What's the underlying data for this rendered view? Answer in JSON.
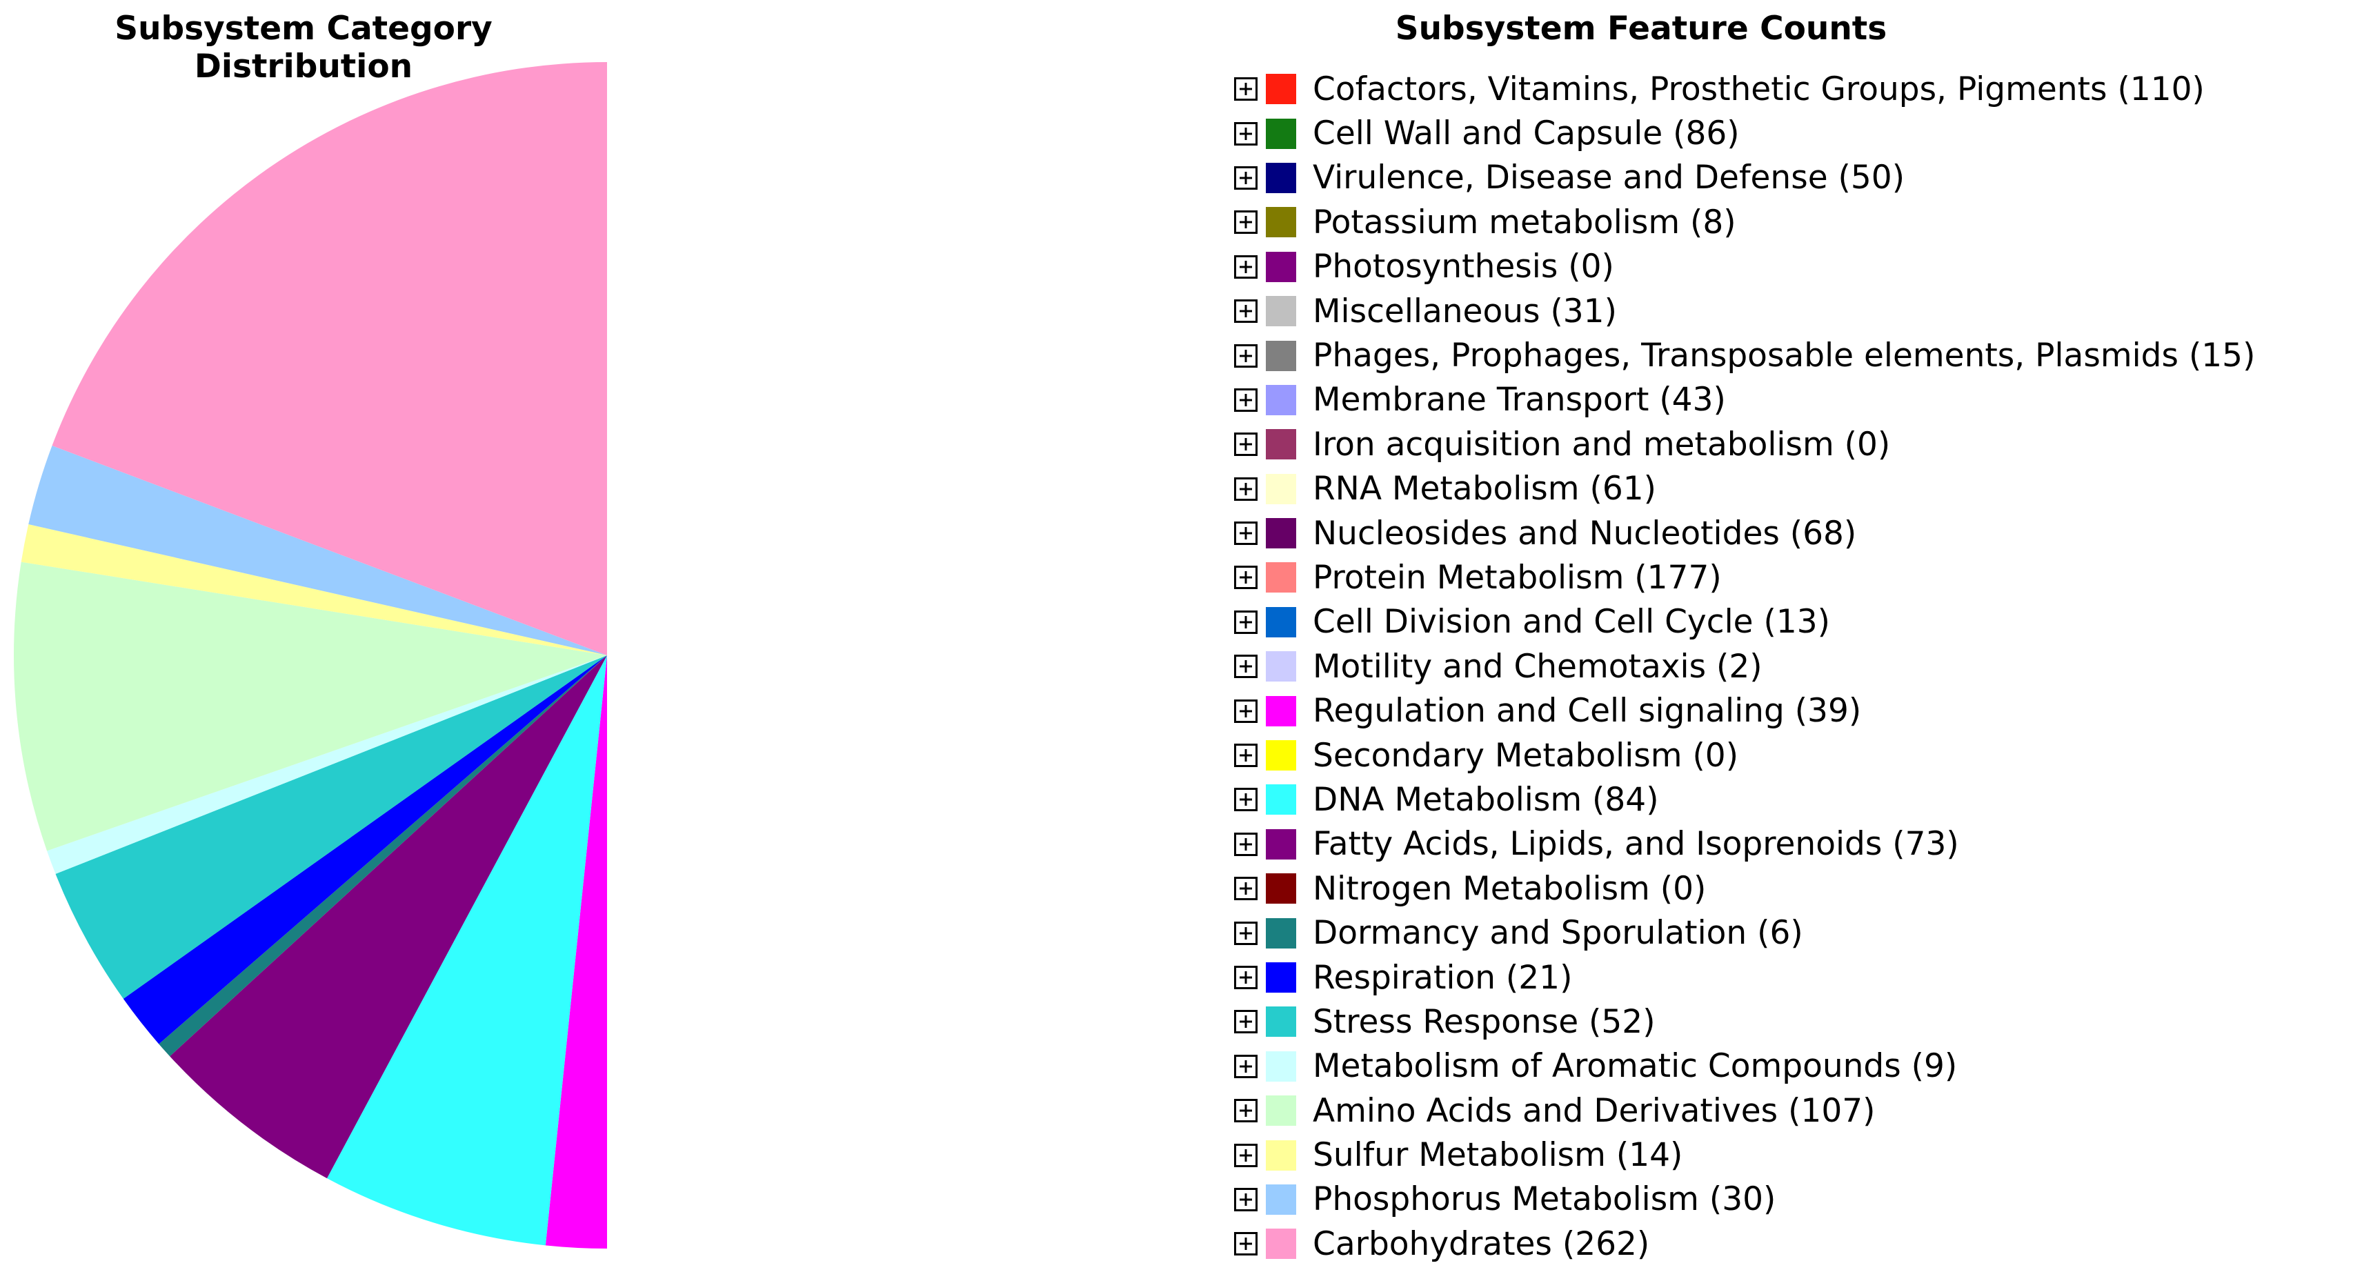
{
  "chart_data": {
    "type": "pie",
    "title": "Subsystem Category Distribution",
    "legend_title": "Subsystem Feature Counts",
    "start_angle": "12 o'clock, clockwise",
    "categories": [
      {
        "name": "Cofactors, Vitamins, Prosthetic Groups, Pigments",
        "value": 110,
        "color": "#ff1e0e"
      },
      {
        "name": "Cell Wall and Capsule",
        "value": 86,
        "color": "#137b13"
      },
      {
        "name": "Virulence, Disease and Defense",
        "value": 50,
        "color": "#000080"
      },
      {
        "name": "Potassium metabolism",
        "value": 8,
        "color": "#807b00"
      },
      {
        "name": "Photosynthesis",
        "value": 0,
        "color": "#800080"
      },
      {
        "name": "Miscellaneous",
        "value": 31,
        "color": "#c0c0c0"
      },
      {
        "name": "Phages, Prophages, Transposable elements, Plasmids",
        "value": 15,
        "color": "#808080"
      },
      {
        "name": "Membrane Transport",
        "value": 43,
        "color": "#9999ff"
      },
      {
        "name": "Iron acquisition and metabolism",
        "value": 0,
        "color": "#993366"
      },
      {
        "name": "RNA Metabolism",
        "value": 61,
        "color": "#ffffcc"
      },
      {
        "name": "Nucleosides and Nucleotides",
        "value": 68,
        "color": "#660066"
      },
      {
        "name": "Protein Metabolism",
        "value": 177,
        "color": "#ff8080"
      },
      {
        "name": "Cell Division and Cell Cycle",
        "value": 13,
        "color": "#0066cc"
      },
      {
        "name": "Motility and Chemotaxis",
        "value": 2,
        "color": "#ccccff"
      },
      {
        "name": "Regulation and Cell signaling",
        "value": 39,
        "color": "#ff00ff"
      },
      {
        "name": "Secondary Metabolism",
        "value": 0,
        "color": "#ffff00"
      },
      {
        "name": "DNA Metabolism",
        "value": 84,
        "color": "#33ffff"
      },
      {
        "name": "Fatty Acids, Lipids, and Isoprenoids",
        "value": 73,
        "color": "#800080"
      },
      {
        "name": "Nitrogen Metabolism",
        "value": 0,
        "color": "#800000"
      },
      {
        "name": "Dormancy and Sporulation",
        "value": 6,
        "color": "#1a8080"
      },
      {
        "name": "Respiration",
        "value": 21,
        "color": "#0000ff"
      },
      {
        "name": "Stress Response",
        "value": 52,
        "color": "#26cccc"
      },
      {
        "name": "Metabolism of Aromatic Compounds",
        "value": 9,
        "color": "#ccffff"
      },
      {
        "name": "Amino Acids and Derivatives",
        "value": 107,
        "color": "#ccffcc"
      },
      {
        "name": "Sulfur Metabolism",
        "value": 14,
        "color": "#ffff99"
      },
      {
        "name": "Phosphorus Metabolism",
        "value": 30,
        "color": "#99ccff"
      },
      {
        "name": "Carbohydrates",
        "value": 262,
        "color": "#ff99cc"
      }
    ]
  }
}
